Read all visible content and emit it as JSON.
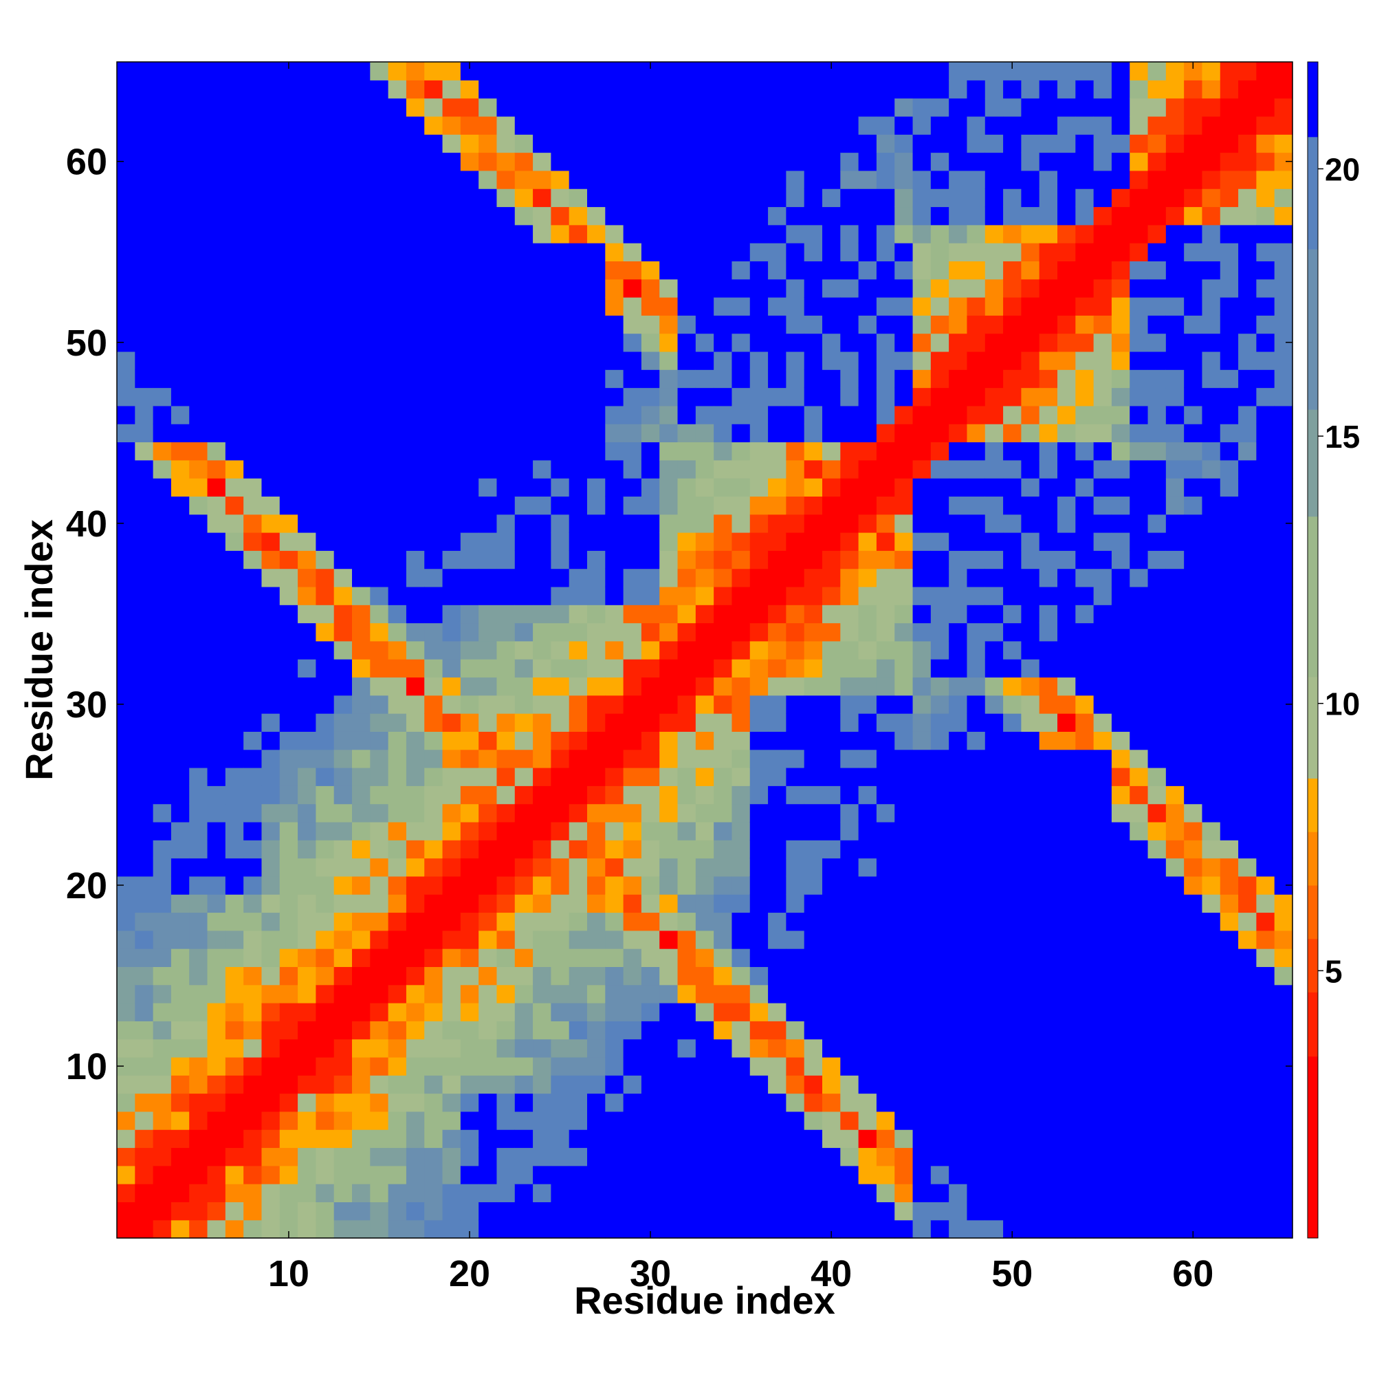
{
  "chart_data": {
    "type": "heatmap",
    "title": "",
    "xlabel": "Residue index",
    "ylabel": "Residue index",
    "n": 65,
    "xlim": [
      0.5,
      65.5
    ],
    "ylim": [
      0.5,
      65.5
    ],
    "x_ticks": [
      10,
      20,
      30,
      40,
      50,
      60
    ],
    "y_ticks": [
      10,
      20,
      30,
      40,
      50,
      60
    ],
    "colorbar": {
      "ticks": [
        5,
        10,
        15,
        20
      ],
      "range": [
        0,
        22
      ],
      "stops": [
        {
          "value": 0,
          "color": "#ff0000"
        },
        {
          "value": 3.4,
          "color": "#ff2200"
        },
        {
          "value": 4.6,
          "color": "#ff4400"
        },
        {
          "value": 5.6,
          "color": "#ff6600"
        },
        {
          "value": 6.6,
          "color": "#ff8800"
        },
        {
          "value": 7.6,
          "color": "#ffaa00"
        },
        {
          "value": 8.6,
          "color": "#a6bc8c"
        },
        {
          "value": 10.5,
          "color": "#9cb88a"
        },
        {
          "value": 13.5,
          "color": "#7fa09e"
        },
        {
          "value": 15.5,
          "color": "#6a8fb0"
        },
        {
          "value": 18.5,
          "color": "#5882be"
        },
        {
          "value": 20.6,
          "color": "#0000ff"
        }
      ]
    },
    "contact_bands": [
      {
        "name": "diagonal",
        "description": "distance ~ |i-j| near-main diagonal"
      },
      {
        "name": "antidiagonal",
        "description": "hairpin contacts i+j ~ 48 and i+j ~ 82"
      }
    ]
  }
}
